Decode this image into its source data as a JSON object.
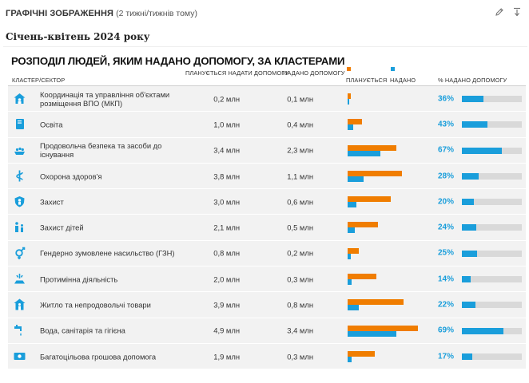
{
  "header": {
    "section_title": "ГРАФІЧНІ ЗОБРАЖЕННЯ",
    "time_ago": "(2 тижні/тижнів тому)",
    "edit_icon": "pencil-icon",
    "pin_icon": "pin-icon"
  },
  "period": "Січень-квітень 2024 року",
  "colors": {
    "planned": "#f07d00",
    "reached": "#1a9edb",
    "track": "#d9d9d9",
    "row_bg": "#f2f2f2"
  },
  "chart_data": {
    "type": "bar",
    "title": "РОЗПОДІЛ ЛЮДЕЙ, ЯКИМ НАДАНО ДОПОМОГУ, ЗА КЛАСТЕРАМИ",
    "columns": {
      "sector": "КЛАСТЕР/СЕКТОР",
      "planned": "ПЛАНУЄТЬСЯ НАДАТИ ДОПОМОГУ",
      "reached": "НАДАНО ДОПОМОГУ",
      "legend_planned": "ПЛАНУЄТЬСЯ",
      "legend_reached": "НАДАНО",
      "percent": "% НАДАНО ДОПОМОГУ"
    },
    "unit": "млн",
    "rows": [
      {
        "sector": "Координація та управління об'єктами розміщення ВПО (МКП)",
        "icon": "shelter-management-icon",
        "planned": 0.2,
        "planned_label": "0,2 млн",
        "reached": 0.1,
        "reached_label": "0,1 млн",
        "percent": 36,
        "percent_label": "36%"
      },
      {
        "sector": "Освіта",
        "icon": "education-icon",
        "planned": 1.0,
        "planned_label": "1,0 млн",
        "reached": 0.4,
        "reached_label": "0,4 млн",
        "percent": 43,
        "percent_label": "43%"
      },
      {
        "sector": "Продовольча безпека та засоби до існування",
        "icon": "food-security-icon",
        "planned": 3.4,
        "planned_label": "3,4 млн",
        "reached": 2.3,
        "reached_label": "2,3 млн",
        "percent": 67,
        "percent_label": "67%"
      },
      {
        "sector": "Охорона здоров'я",
        "icon": "health-icon",
        "planned": 3.8,
        "planned_label": "3,8 млн",
        "reached": 1.1,
        "reached_label": "1,1 млн",
        "percent": 28,
        "percent_label": "28%"
      },
      {
        "sector": "Захист",
        "icon": "protection-icon",
        "planned": 3.0,
        "planned_label": "3,0 млн",
        "reached": 0.6,
        "reached_label": "0,6 млн",
        "percent": 20,
        "percent_label": "20%"
      },
      {
        "sector": "Захист дітей",
        "icon": "child-protection-icon",
        "planned": 2.1,
        "planned_label": "2,1 млн",
        "reached": 0.5,
        "reached_label": "0,5 млн",
        "percent": 24,
        "percent_label": "24%"
      },
      {
        "sector": "Гендерно зумовлене насильство (ГЗН)",
        "icon": "gbv-icon",
        "planned": 0.8,
        "planned_label": "0,8 млн",
        "reached": 0.2,
        "reached_label": "0,2 млн",
        "percent": 25,
        "percent_label": "25%"
      },
      {
        "sector": "Протимінна діяльність",
        "icon": "mine-action-icon",
        "planned": 2.0,
        "planned_label": "2,0 млн",
        "reached": 0.3,
        "reached_label": "0,3 млн",
        "percent": 14,
        "percent_label": "14%"
      },
      {
        "sector": "Житло та непродовольчі товари",
        "icon": "shelter-nfi-icon",
        "planned": 3.9,
        "planned_label": "3,9 млн",
        "reached": 0.8,
        "reached_label": "0,8 млн",
        "percent": 22,
        "percent_label": "22%"
      },
      {
        "sector": "Вода, санітарія та гігієна",
        "icon": "wash-icon",
        "planned": 4.9,
        "planned_label": "4,9 млн",
        "reached": 3.4,
        "reached_label": "3,4 млн",
        "percent": 69,
        "percent_label": "69%"
      },
      {
        "sector": "Багатоцільова грошова допомога",
        "icon": "cash-assistance-icon",
        "planned": 1.9,
        "planned_label": "1,9 млн",
        "reached": 0.3,
        "reached_label": "0,3 млн",
        "percent": 17,
        "percent_label": "17%"
      }
    ]
  }
}
